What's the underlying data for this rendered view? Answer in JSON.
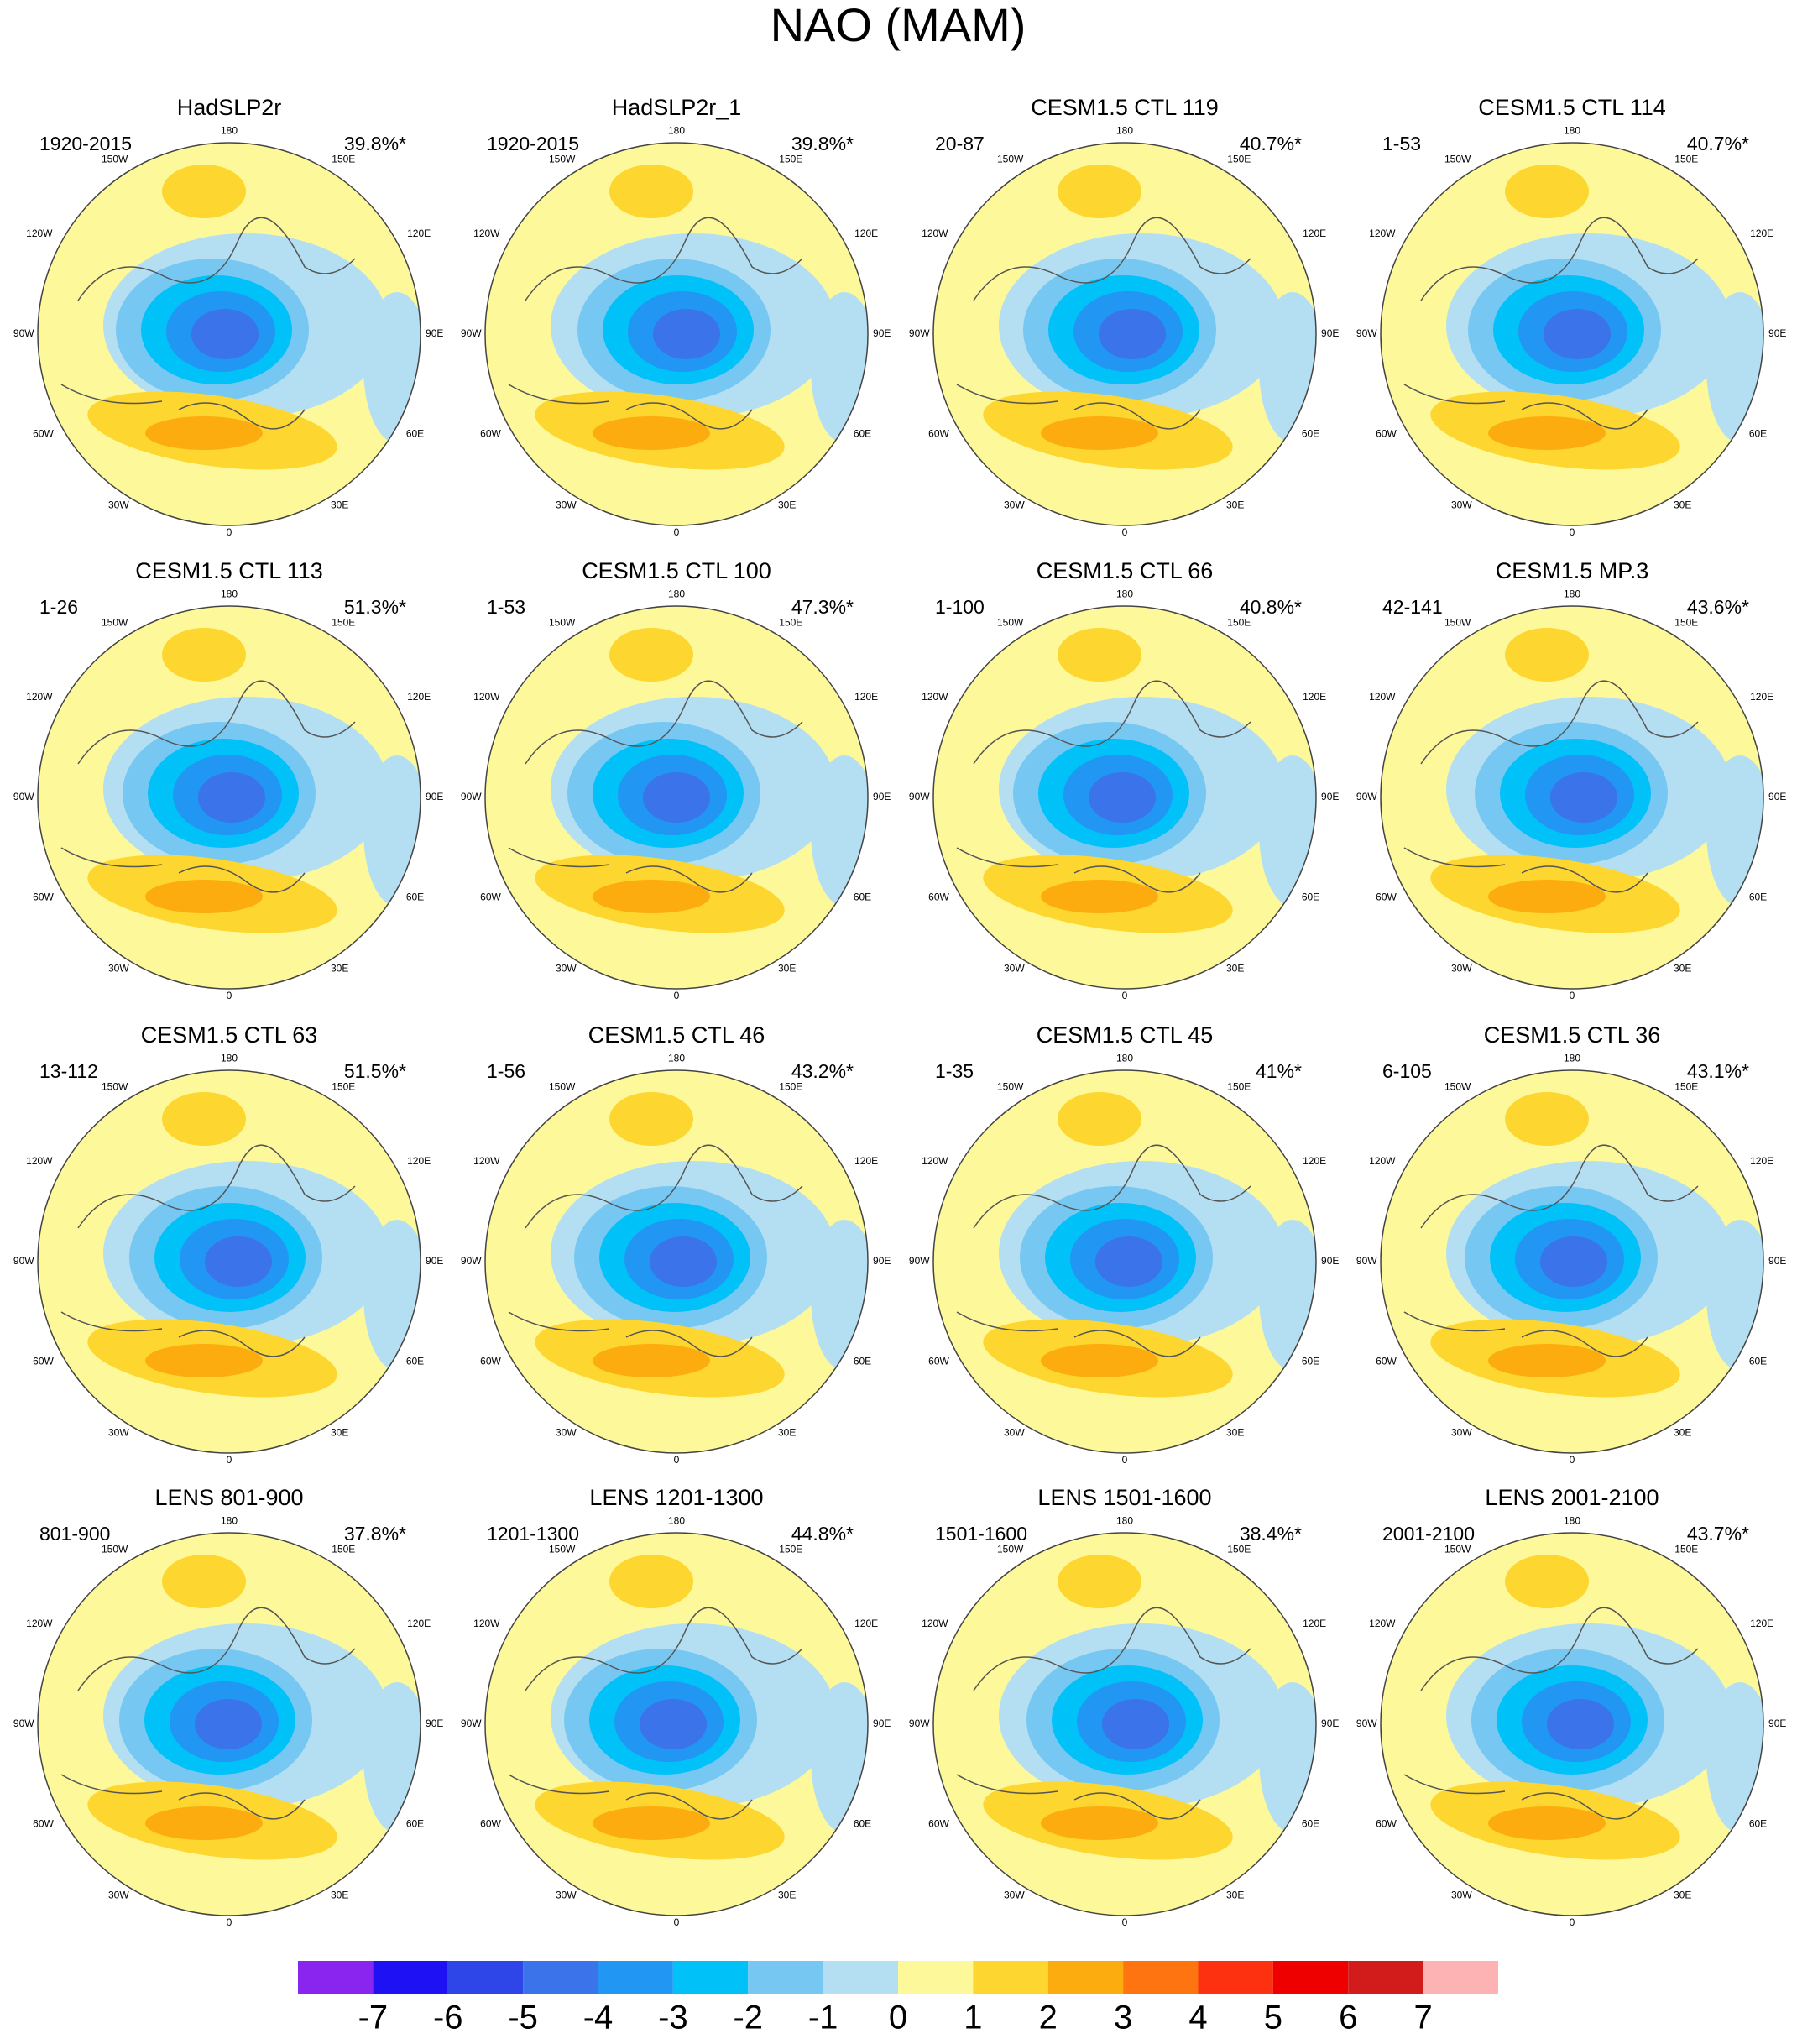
{
  "title": "NAO (MAM)",
  "lon_labels": [
    "180",
    "150W",
    "150E",
    "120W",
    "120E",
    "90W",
    "90E",
    "60W",
    "60E",
    "30W",
    "30E",
    "0"
  ],
  "panels": [
    {
      "title": "HadSLP2r",
      "period": "1920-2015",
      "percent": "39.8%*"
    },
    {
      "title": "HadSLP2r_1",
      "period": "1920-2015",
      "percent": "39.8%*"
    },
    {
      "title": "CESM1.5 CTL 119",
      "period": "20-87",
      "percent": "40.7%*"
    },
    {
      "title": "CESM1.5 CTL 114",
      "period": "1-53",
      "percent": "40.7%*"
    },
    {
      "title": "CESM1.5 CTL 113",
      "period": "1-26",
      "percent": "51.3%*"
    },
    {
      "title": "CESM1.5 CTL 100",
      "period": "1-53",
      "percent": "47.3%*"
    },
    {
      "title": "CESM1.5 CTL 66",
      "period": "1-100",
      "percent": "40.8%*"
    },
    {
      "title": "CESM1.5 MP.3",
      "period": "42-141",
      "percent": "43.6%*"
    },
    {
      "title": "CESM1.5 CTL 63",
      "period": "13-112",
      "percent": "51.5%*"
    },
    {
      "title": "CESM1.5 CTL 46",
      "period": "1-56",
      "percent": "43.2%*"
    },
    {
      "title": "CESM1.5 CTL 45",
      "period": "1-35",
      "percent": "41%*"
    },
    {
      "title": "CESM1.5 CTL 36",
      "period": "6-105",
      "percent": "43.1%*"
    },
    {
      "title": "LENS 801-900",
      "period": "801-900",
      "percent": "37.8%*"
    },
    {
      "title": "LENS 1201-1300",
      "period": "1201-1300",
      "percent": "44.8%*"
    },
    {
      "title": "LENS 1501-1600",
      "period": "1501-1600",
      "percent": "38.4%*"
    },
    {
      "title": "LENS 2001-2100",
      "period": "2001-2100",
      "percent": "43.7%*"
    }
  ],
  "colorbar": {
    "colors": [
      "#8a25f0",
      "#1e12f5",
      "#2e45e8",
      "#3a73ea",
      "#2196f3",
      "#00c1f8",
      "#76c8f2",
      "#b4dff2",
      "#fdf99b",
      "#fdd62f",
      "#fdac10",
      "#fd7410",
      "#fd3010",
      "#ef0000",
      "#d21b1b",
      "#fdb3b3"
    ],
    "labels": [
      -7,
      -6,
      -5,
      -4,
      -3,
      -2,
      -1,
      0,
      1,
      2,
      3,
      4,
      5,
      6,
      7
    ]
  }
}
